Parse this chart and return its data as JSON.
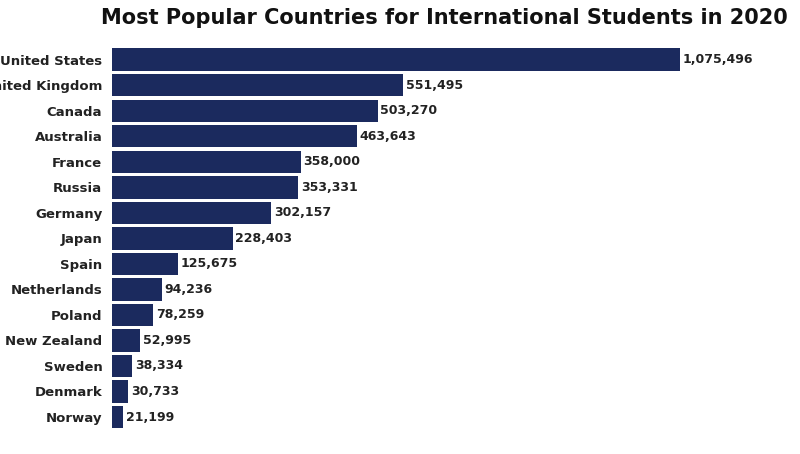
{
  "title": "Most Popular Countries for International Students in 2020",
  "countries": [
    "Norway",
    "Denmark",
    "Sweden",
    "New Zealand",
    "Poland",
    "Netherlands",
    "Spain",
    "Japan",
    "Germany",
    "Russia",
    "France",
    "Australia",
    "Canada",
    "United Kingdom",
    "United States"
  ],
  "values": [
    21199,
    30733,
    38334,
    52995,
    78259,
    94236,
    125675,
    228403,
    302157,
    353331,
    358000,
    463643,
    503270,
    551495,
    1075496
  ],
  "bar_color": "#1b2a5e",
  "label_color": "#222222",
  "background_color": "#ffffff",
  "title_fontsize": 15,
  "label_fontsize": 9.5,
  "value_fontsize": 9
}
